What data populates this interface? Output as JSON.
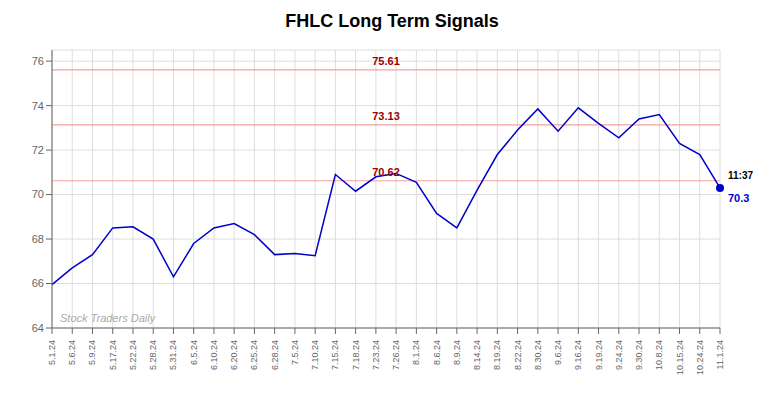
{
  "chart_data": {
    "type": "line",
    "title": "FHLC Long Term Signals",
    "categories": [
      "5.1.24",
      "5.6.24",
      "5.9.24",
      "5.17.24",
      "5.22.24",
      "5.28.24",
      "5.31.24",
      "6.5.24",
      "6.10.24",
      "6.20.24",
      "6.25.24",
      "6.28.24",
      "7.5.24",
      "7.10.24",
      "7.15.24",
      "7.18.24",
      "7.23.24",
      "7.26.24",
      "8.1.24",
      "8.6.24",
      "8.9.24",
      "8.14.24",
      "8.19.24",
      "8.22.24",
      "8.30.24",
      "9.6.24",
      "9.16.24",
      "9.19.24",
      "9.24.24",
      "9.30.24",
      "10.8.24",
      "10.15.24",
      "10.24.24",
      "11.1.24"
    ],
    "values": [
      65.95,
      66.7,
      67.3,
      68.5,
      68.55,
      68.0,
      66.3,
      67.8,
      68.5,
      68.7,
      68.2,
      67.3,
      67.35,
      67.25,
      70.9,
      70.15,
      70.8,
      70.95,
      70.55,
      69.15,
      68.5,
      70.2,
      71.8,
      72.9,
      73.85,
      72.85,
      73.9,
      73.2,
      72.55,
      73.4,
      73.6,
      72.3,
      71.8,
      70.3
    ],
    "color": "#0000cc",
    "ylim": [
      64,
      76.5
    ],
    "yticks": [
      64,
      66,
      68,
      70,
      72,
      74,
      76
    ],
    "grid": true,
    "hlines": [
      {
        "value": 75.61,
        "label": "75.61",
        "color": "#f5a0a0",
        "label_color": "#990000"
      },
      {
        "value": 73.13,
        "label": "73.13",
        "color": "#f5a0a0",
        "label_color": "#990000"
      },
      {
        "value": 70.62,
        "label": "70.62",
        "color": "#f5a0a0",
        "label_color": "#990000"
      }
    ],
    "annotations": [
      {
        "text": "Stock Traders Daily",
        "color": "#aaaaaa"
      },
      {
        "text": "11:37",
        "color": "#000000"
      },
      {
        "text": "70.3",
        "color": "#0000cc"
      }
    ]
  }
}
